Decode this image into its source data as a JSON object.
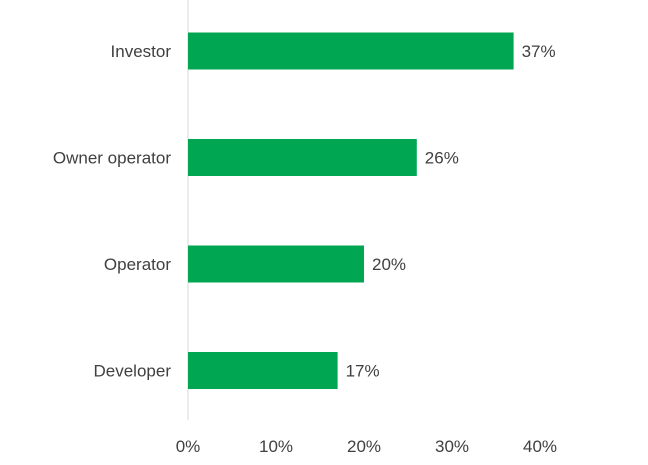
{
  "chart_data": {
    "type": "bar",
    "orientation": "horizontal",
    "categories": [
      "Investor",
      "Owner operator",
      "Operator",
      "Developer"
    ],
    "values": [
      37,
      26,
      20,
      17
    ],
    "value_labels": [
      "37%",
      "26%",
      "20%",
      "17%"
    ],
    "xlim": [
      0,
      40
    ],
    "x_ticks": [
      0,
      10,
      20,
      30,
      40
    ],
    "x_tick_labels": [
      "0%",
      "10%",
      "20%",
      "30%",
      "40%"
    ],
    "grid": false,
    "legend": "none",
    "bar_color": "#00a651",
    "axis_color": "#d9d9d9",
    "text_color": "#404040"
  }
}
